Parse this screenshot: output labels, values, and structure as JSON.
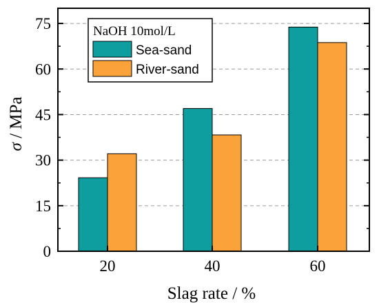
{
  "chart_data": {
    "type": "bar",
    "categories": [
      "20",
      "40",
      "60"
    ],
    "series": [
      {
        "name": "Sea-sand",
        "values": [
          24.2,
          47.0,
          73.8
        ]
      },
      {
        "name": "River-sand",
        "values": [
          32.1,
          38.3,
          68.7
        ]
      }
    ],
    "xlabel": "Slag rate / %",
    "ylabel_symbol": "σ",
    "ylabel_rest": " / MPa",
    "ylim": [
      0,
      80
    ],
    "yticks": [
      0,
      15,
      30,
      45,
      60,
      75
    ],
    "grid": "horizontal dashed",
    "legend_title": "NaOH  10mol/L",
    "legend_position": "top-left",
    "colors": {
      "Sea-sand": "#0f9ea0",
      "River-sand": "#fba23a"
    }
  }
}
